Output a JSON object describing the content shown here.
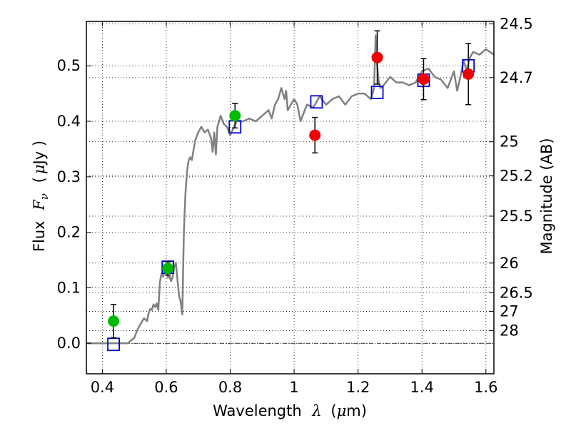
{
  "chart_data": {
    "type": "line",
    "title": "",
    "xlabel": {
      "prefix": "Wavelength",
      "symbol": "λ",
      "open": "(",
      "unit_symbol": "μ",
      "unit_rest": "m)"
    },
    "ylabel": {
      "prefix": "Flux",
      "symbol": "F",
      "subscript": "ν",
      "open": "(",
      "unit_symbol": "μ",
      "unit_rest": "Jy )"
    },
    "y2label": "Magnitude (AB)",
    "xlim": [
      0.35,
      1.625
    ],
    "ylim": [
      -0.055,
      0.58
    ],
    "xticks": [
      {
        "value": 0.4,
        "label": "0.4"
      },
      {
        "value": 0.6,
        "label": "0.6"
      },
      {
        "value": 0.8,
        "label": "0.8"
      },
      {
        "value": 1.0,
        "label": "1"
      },
      {
        "value": 1.2,
        "label": "1.2"
      },
      {
        "value": 1.4,
        "label": "1.4"
      },
      {
        "value": 1.6,
        "label": "1.6"
      }
    ],
    "yticks": [
      {
        "value": 0.0,
        "label": "0.0"
      },
      {
        "value": 0.1,
        "label": "0.1"
      },
      {
        "value": 0.2,
        "label": "0.2"
      },
      {
        "value": 0.3,
        "label": "0.3"
      },
      {
        "value": 0.4,
        "label": "0.4"
      },
      {
        "value": 0.5,
        "label": "0.5"
      }
    ],
    "y2ticks": [
      {
        "mag": 24.5,
        "label": "24.5"
      },
      {
        "mag": 24.7,
        "label": "24.7"
      },
      {
        "mag": 25,
        "label": "25"
      },
      {
        "mag": 25.2,
        "label": "25.2"
      },
      {
        "mag": 25.5,
        "label": "25.5"
      },
      {
        "mag": 26,
        "label": "26"
      },
      {
        "mag": 26.5,
        "label": "26.5"
      },
      {
        "mag": 27,
        "label": "27"
      },
      {
        "mag": 28,
        "label": "28"
      }
    ],
    "grid": true,
    "zero_line": true,
    "series": [
      {
        "kind": "line",
        "color": "#808080",
        "x": [
          0.35,
          0.4,
          0.45,
          0.48,
          0.5,
          0.51,
          0.52,
          0.53,
          0.54,
          0.545,
          0.55,
          0.555,
          0.56,
          0.565,
          0.57,
          0.575,
          0.58,
          0.585,
          0.59,
          0.595,
          0.6,
          0.605,
          0.61,
          0.615,
          0.62,
          0.625,
          0.63,
          0.635,
          0.64,
          0.645,
          0.65,
          0.655,
          0.66,
          0.665,
          0.67,
          0.675,
          0.68,
          0.69,
          0.7,
          0.71,
          0.72,
          0.73,
          0.74,
          0.745,
          0.75,
          0.755,
          0.76,
          0.77,
          0.78,
          0.79,
          0.8,
          0.82,
          0.84,
          0.86,
          0.88,
          0.9,
          0.92,
          0.93,
          0.94,
          0.95,
          0.96,
          0.97,
          0.975,
          0.98,
          0.99,
          1.0,
          1.01,
          1.02,
          1.04,
          1.06,
          1.08,
          1.1,
          1.12,
          1.14,
          1.16,
          1.18,
          1.2,
          1.22,
          1.24,
          1.25,
          1.255,
          1.26,
          1.265,
          1.27,
          1.28,
          1.3,
          1.32,
          1.34,
          1.36,
          1.38,
          1.4,
          1.42,
          1.44,
          1.46,
          1.48,
          1.5,
          1.51,
          1.52,
          1.53,
          1.54,
          1.55,
          1.56,
          1.58,
          1.6,
          1.625
        ],
        "y": [
          0.0,
          0.0,
          0.0,
          0.0,
          0.01,
          0.025,
          0.035,
          0.045,
          0.04,
          0.055,
          0.062,
          0.06,
          0.07,
          0.065,
          0.072,
          0.06,
          0.11,
          0.125,
          0.12,
          0.13,
          0.135,
          0.118,
          0.122,
          0.112,
          0.12,
          0.138,
          0.145,
          0.115,
          0.085,
          0.075,
          0.052,
          0.2,
          0.27,
          0.31,
          0.33,
          0.335,
          0.33,
          0.365,
          0.38,
          0.39,
          0.38,
          0.385,
          0.37,
          0.345,
          0.38,
          0.34,
          0.39,
          0.41,
          0.395,
          0.39,
          0.375,
          0.4,
          0.4,
          0.405,
          0.4,
          0.41,
          0.42,
          0.405,
          0.43,
          0.44,
          0.46,
          0.44,
          0.455,
          0.42,
          0.43,
          0.44,
          0.43,
          0.4,
          0.43,
          0.425,
          0.445,
          0.43,
          0.44,
          0.445,
          0.43,
          0.445,
          0.45,
          0.45,
          0.44,
          0.46,
          0.555,
          0.5,
          0.47,
          0.46,
          0.465,
          0.48,
          0.47,
          0.47,
          0.465,
          0.47,
          0.49,
          0.495,
          0.48,
          0.475,
          0.46,
          0.49,
          0.455,
          0.48,
          0.51,
          0.49,
          0.515,
          0.525,
          0.52,
          0.53,
          0.52
        ]
      },
      {
        "kind": "scatter",
        "marker": "square-open",
        "color": "#0000cc",
        "x": [
          0.435,
          0.605,
          0.815,
          1.07,
          1.26,
          1.405,
          1.545
        ],
        "y": [
          -0.002,
          0.137,
          0.39,
          0.435,
          0.452,
          0.474,
          0.5
        ]
      },
      {
        "kind": "scatter",
        "marker": "circle",
        "color": "#00bb00",
        "x": [
          0.435,
          0.605,
          0.815
        ],
        "y": [
          0.04,
          0.135,
          0.41
        ],
        "yerr": [
          0.03,
          0.012,
          0.022
        ]
      },
      {
        "kind": "scatter",
        "marker": "circle",
        "color": "#ee0000",
        "x": [
          1.065,
          1.26,
          1.405,
          1.545
        ],
        "y": [
          0.375,
          0.515,
          0.476,
          0.485
        ],
        "yerr": [
          0.032,
          0.048,
          0.037,
          0.055
        ]
      }
    ]
  }
}
